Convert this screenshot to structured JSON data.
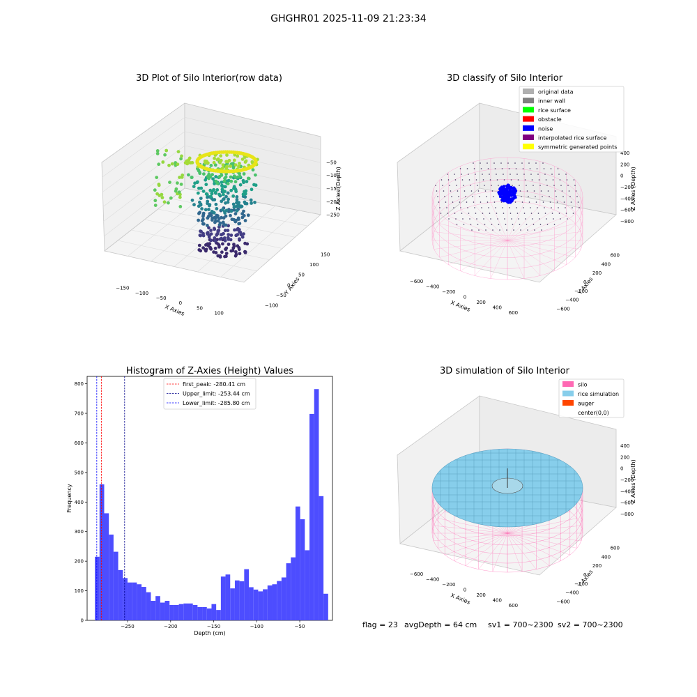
{
  "suptitle": "GHGHR01 2025-11-09 21:23:34",
  "footer": {
    "flag": "flag = 23",
    "avg_depth": "avgDepth = 64 cm",
    "sv1": "sv1 = 700~2300",
    "sv2": "sv2 = 700~2300"
  },
  "chart_data": [
    {
      "type": "scatter",
      "title": "3D Plot of Silo Interior(row data)",
      "xlabel": "X Axies",
      "ylabel": "Y Axies",
      "zlabel": "Z Axies (Depth)",
      "x_ticks": [
        "−150",
        "−100",
        "−50",
        "0",
        "50",
        "100"
      ],
      "y_ticks": [
        "−100",
        "−50",
        "0",
        "50",
        "100",
        "150"
      ],
      "z_ticks": [
        "−50",
        "−100",
        "−150",
        "−200",
        "−250"
      ],
      "colormap": "viridis"
    },
    {
      "type": "scatter",
      "title": "3D classify of Silo Interior",
      "xlabel": "X Axies",
      "ylabel": "Y Axies",
      "zlabel": "Z Axies (Depth)",
      "x_ticks": [
        "−600",
        "−400",
        "−200",
        "0",
        "200",
        "400",
        "600"
      ],
      "y_ticks": [
        "−600",
        "−400",
        "−200",
        "0",
        "200",
        "400",
        "600"
      ],
      "z_ticks": [
        "400",
        "200",
        "0",
        "−200",
        "−400",
        "−600",
        "−800"
      ],
      "legend": [
        {
          "label": "original data",
          "color": "#b0b0b0"
        },
        {
          "label": "inner wall",
          "color": "#808080"
        },
        {
          "label": "rice surface",
          "color": "#00ff00"
        },
        {
          "label": "obstacle",
          "color": "#ff0000"
        },
        {
          "label": "noise",
          "color": "#0000ff"
        },
        {
          "label": "interpolated rice surface",
          "color": "#800080"
        },
        {
          "label": "symmetric generated points",
          "color": "#ffff00"
        }
      ],
      "legend_position": "top-right"
    },
    {
      "type": "bar",
      "title": "Histogram of Z-Axies (Height) Values",
      "xlabel": "Depth (cm)",
      "ylabel": "Frequency",
      "xlim": [
        -297,
        -12
      ],
      "ylim": [
        0,
        825
      ],
      "x_ticks": [
        -250,
        -200,
        -150,
        -100,
        -50
      ],
      "x_tick_labels": [
        "−250",
        "−200",
        "−150",
        "−100",
        "−50"
      ],
      "y_ticks": [
        0,
        100,
        200,
        300,
        400,
        500,
        600,
        700,
        800
      ],
      "bin_start": -288,
      "bin_width": 5.42,
      "values": [
        215,
        460,
        362,
        290,
        232,
        170,
        143,
        128,
        128,
        122,
        113,
        95,
        66,
        82,
        60,
        66,
        52,
        52,
        55,
        57,
        57,
        52,
        45,
        45,
        40,
        55,
        35,
        148,
        155,
        108,
        135,
        132,
        173,
        112,
        104,
        98,
        105,
        118,
        122,
        133,
        145,
        193,
        213,
        385,
        342,
        237,
        698,
        782,
        420,
        90
      ],
      "bar_color": "#4d4dff",
      "lines": [
        {
          "label": "first_peak: -280.41 cm",
          "value": -280.41,
          "color": "#ff0000"
        },
        {
          "label": "Upper_limit: -253.44 cm",
          "value": -253.44,
          "color": "#00008b"
        },
        {
          "label": "Lower_limit: -285.80 cm",
          "value": -285.8,
          "color": "#0000ff"
        }
      ],
      "legend_position": "top-center"
    },
    {
      "type": "scatter",
      "title": "3D simulation of Silo Interior",
      "xlabel": "X Axies",
      "ylabel": "Y Axies",
      "zlabel": "Z Axies (Depth)",
      "x_ticks": [
        "−600",
        "−400",
        "−200",
        "0",
        "200",
        "400",
        "600"
      ],
      "y_ticks": [
        "−600",
        "−400",
        "−200",
        "0",
        "200",
        "400",
        "600"
      ],
      "z_ticks": [
        "400",
        "200",
        "0",
        "−200",
        "−400",
        "−600",
        "−800"
      ],
      "legend": [
        {
          "label": "silo",
          "color": "#ff69b4"
        },
        {
          "label": "rice simulation",
          "color": "#87ceeb"
        },
        {
          "label": "auger",
          "color": "#ff4500"
        },
        {
          "label": "center(0,0)",
          "color": "#ffffff"
        }
      ],
      "legend_position": "top-right"
    }
  ]
}
